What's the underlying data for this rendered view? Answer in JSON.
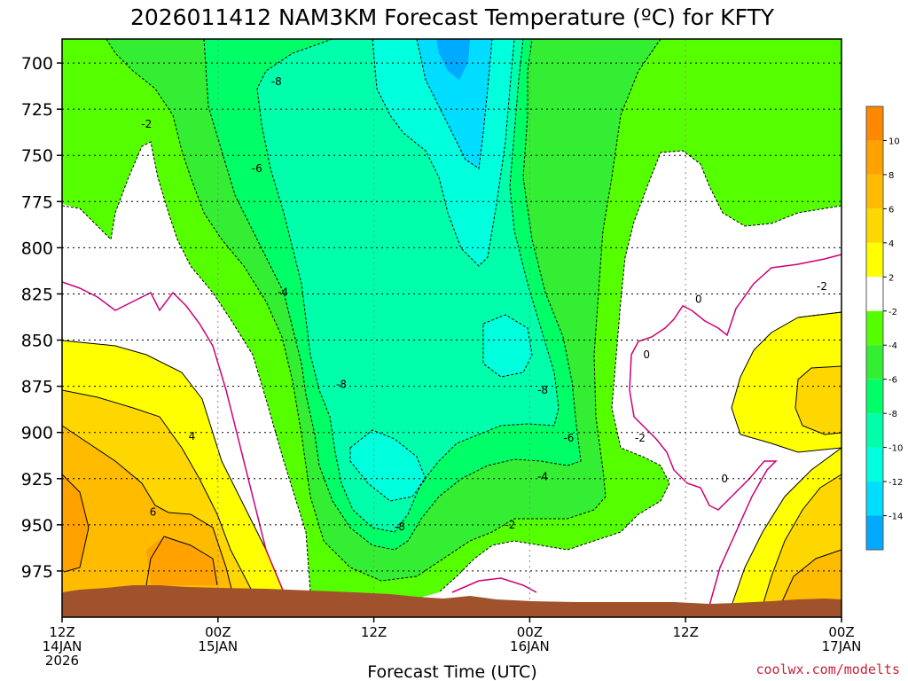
{
  "title": "2026011412 NAM3KM Forecast Temperature (ºC) for KFTY",
  "credit": "coolwx.com/modelts",
  "chart_data": {
    "type": "heatmap",
    "title": "2026011412 NAM3KM Forecast Temperature (ºC) for KFTY",
    "xlabel": "Forecast Time (UTC)",
    "ylabel": "",
    "y_inverted": true,
    "ylim": [
      1000,
      687
    ],
    "xlim": [
      0,
      60
    ],
    "y_ticks": [
      700,
      725,
      750,
      775,
      800,
      825,
      850,
      875,
      900,
      925,
      950,
      975
    ],
    "x_ticks": [
      {
        "hour": 0,
        "lines": [
          "12Z",
          "14JAN",
          "2026"
        ]
      },
      {
        "hour": 12,
        "lines": [
          "00Z",
          "15JAN"
        ]
      },
      {
        "hour": 24,
        "lines": [
          "12Z"
        ]
      },
      {
        "hour": 36,
        "lines": [
          "00Z",
          "16JAN"
        ]
      },
      {
        "hour": 48,
        "lines": [
          "12Z"
        ]
      },
      {
        "hour": 60,
        "lines": [
          "00Z",
          "17JAN"
        ]
      }
    ],
    "grid": true,
    "colorbar": {
      "ticks": [
        10,
        8,
        6,
        4,
        2,
        -2,
        -4,
        -6,
        -8,
        -10,
        -12,
        -14
      ],
      "bands": [
        {
          "range": [
            10,
            12
          ],
          "color": "#ff8800"
        },
        {
          "range": [
            8,
            10
          ],
          "color": "#ffa200"
        },
        {
          "range": [
            6,
            8
          ],
          "color": "#ffbb00"
        },
        {
          "range": [
            4,
            6
          ],
          "color": "#ffd700"
        },
        {
          "range": [
            2,
            4
          ],
          "color": "#ffff00"
        },
        {
          "range": [
            -2,
            2
          ],
          "color": "#ffffff"
        },
        {
          "range": [
            -4,
            -2
          ],
          "color": "#55ff00"
        },
        {
          "range": [
            -6,
            -4
          ],
          "color": "#33ee33"
        },
        {
          "range": [
            -8,
            -6
          ],
          "color": "#00ff66"
        },
        {
          "range": [
            -10,
            -8
          ],
          "color": "#00ffaa"
        },
        {
          "range": [
            -12,
            -10
          ],
          "color": "#00ffdd"
        },
        {
          "range": [
            -14,
            -12
          ],
          "color": "#00ddff"
        },
        {
          "range": [
            -16,
            -14
          ],
          "color": "#00aaff"
        }
      ]
    },
    "contour_labels": [
      {
        "text": "-8",
        "hour": 16.5,
        "p": 710
      },
      {
        "text": "-2",
        "hour": 6.5,
        "p": 733
      },
      {
        "text": "-6",
        "hour": 15.0,
        "p": 757
      },
      {
        "text": "-4",
        "hour": 17.0,
        "p": 824
      },
      {
        "text": "-8",
        "hour": 21.5,
        "p": 874
      },
      {
        "text": "-8",
        "hour": 37.0,
        "p": 877
      },
      {
        "text": "-6",
        "hour": 39.0,
        "p": 903
      },
      {
        "text": "-2",
        "hour": 44.5,
        "p": 903
      },
      {
        "text": "-4",
        "hour": 37.0,
        "p": 924
      },
      {
        "text": "-2",
        "hour": 34.5,
        "p": 950
      },
      {
        "text": "-8",
        "hour": 26.0,
        "p": 951
      },
      {
        "text": "4",
        "hour": 10.0,
        "p": 902
      },
      {
        "text": "6",
        "hour": 7.0,
        "p": 943
      },
      {
        "text": "0",
        "hour": 45.0,
        "p": 858
      },
      {
        "text": "0",
        "hour": 49.0,
        "p": 828
      },
      {
        "text": "0",
        "hour": 51.0,
        "p": 925
      },
      {
        "text": "-2",
        "hour": 58.5,
        "p": 821
      }
    ]
  }
}
